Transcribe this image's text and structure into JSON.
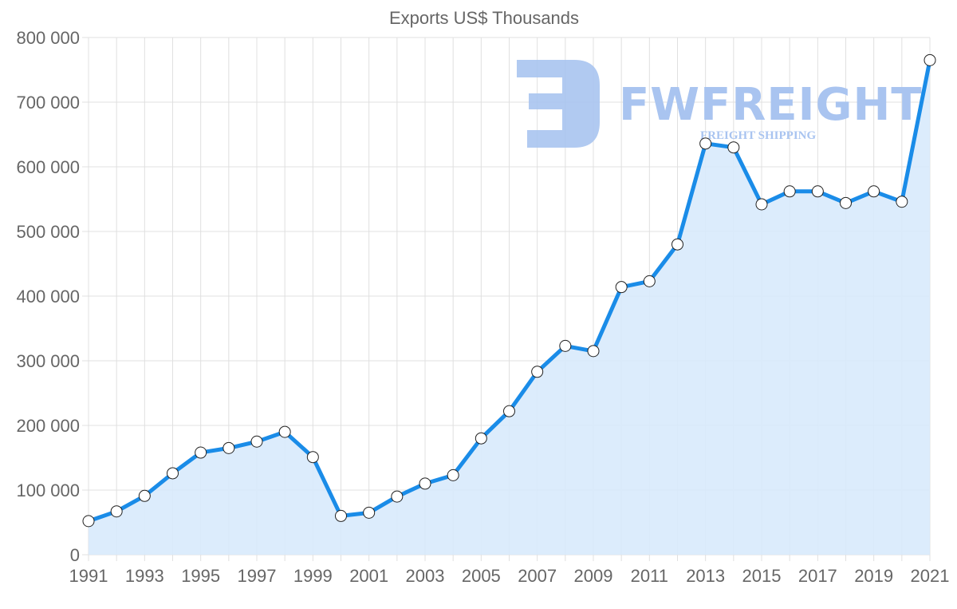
{
  "chart_data": {
    "type": "line",
    "title": "Exports US$ Thousands",
    "xlabel": "",
    "ylabel": "",
    "ylim": [
      0,
      800000
    ],
    "yticks": [
      0,
      100000,
      200000,
      300000,
      400000,
      500000,
      600000,
      700000,
      800000
    ],
    "ytick_labels": [
      "0",
      "100 000",
      "200 000",
      "300 000",
      "400 000",
      "500 000",
      "600 000",
      "700 000",
      "800 000"
    ],
    "xtick_labels": [
      "1991",
      "1993",
      "1995",
      "1997",
      "1999",
      "2001",
      "2003",
      "2005",
      "2007",
      "2009",
      "2011",
      "2013",
      "2015",
      "2017",
      "2019",
      "2021"
    ],
    "grid": true,
    "filled_area": true,
    "legend": "none",
    "x": [
      1991,
      1992,
      1993,
      1994,
      1995,
      1996,
      1997,
      1998,
      1999,
      2000,
      2001,
      2002,
      2003,
      2004,
      2005,
      2006,
      2007,
      2008,
      2009,
      2010,
      2011,
      2012,
      2013,
      2014,
      2015,
      2016,
      2017,
      2018,
      2019,
      2020,
      2021
    ],
    "series": [
      {
        "name": "Exports US$ Thousands",
        "values": [
          52000,
          67000,
          91000,
          126000,
          158000,
          165000,
          175000,
          190000,
          151000,
          60000,
          65000,
          90000,
          110000,
          123000,
          180000,
          222000,
          283000,
          323000,
          315000,
          414000,
          423000,
          480000,
          636000,
          630000,
          542000,
          562000,
          562000,
          544000,
          562000,
          546000,
          765000
        ]
      }
    ]
  },
  "watermark": {
    "brand": "FWFREIGHT",
    "tagline": "FREIGHT SHIPPING"
  },
  "colors": {
    "line": "#1a8ce8",
    "fill": "#d8eafc",
    "grid": "#e0e0e0",
    "text": "#666666",
    "watermark": "#a9c4f0"
  }
}
